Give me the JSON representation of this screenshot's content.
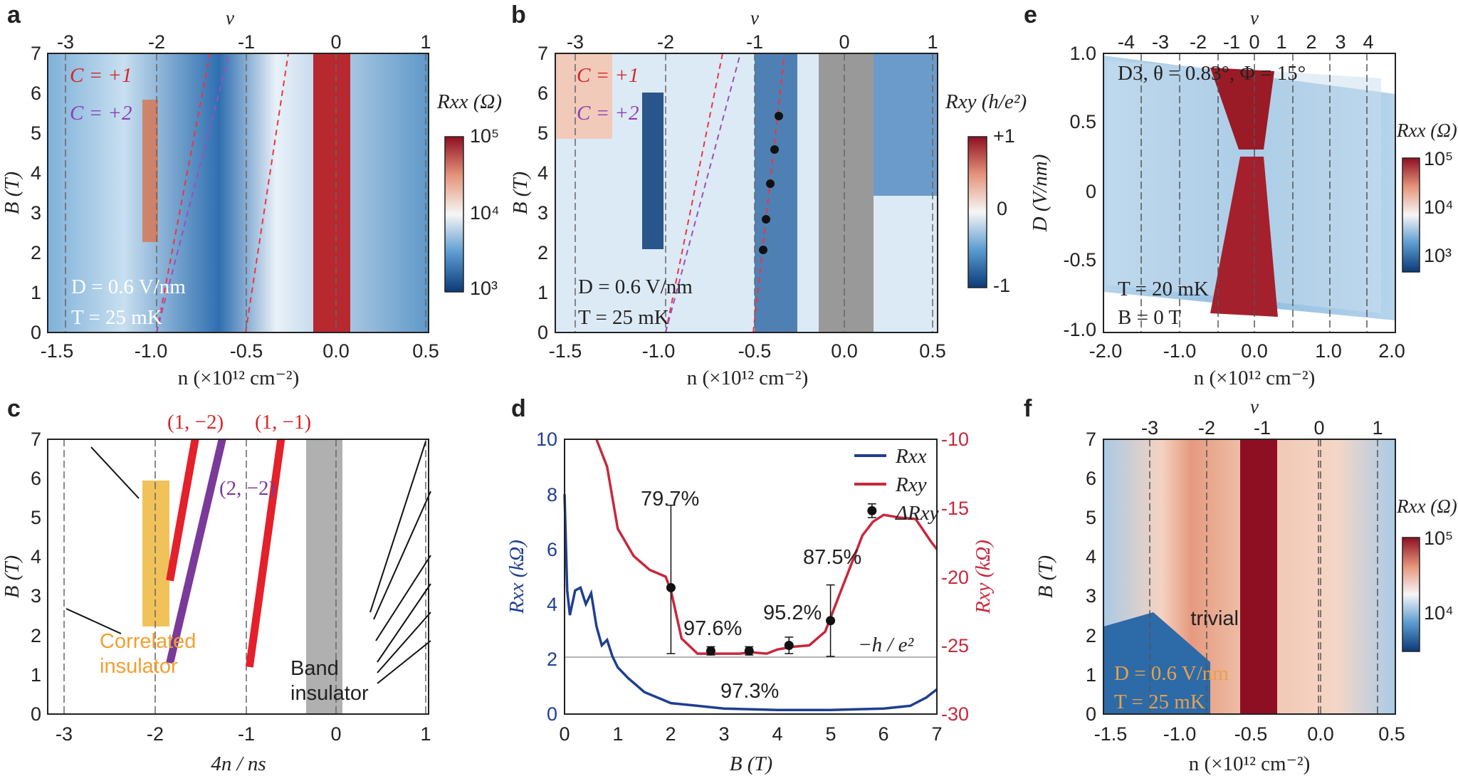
{
  "panels": {
    "a": {
      "label": "a",
      "top_axis_label": "ν",
      "top_ticks": [
        "-3",
        "-2",
        "-1",
        "0",
        "1"
      ],
      "x_label": "n (×10¹² cm⁻²)",
      "x_ticks": [
        "-1.5",
        "-1.0",
        "-0.5",
        "0.0",
        "0.5"
      ],
      "y_label": "B (T)",
      "y_ticks": [
        "0",
        "1",
        "2",
        "3",
        "4",
        "5",
        "6",
        "7"
      ],
      "legend": [
        "C = +1",
        "C = +2"
      ],
      "conditions": [
        "D = 0.6 V/nm",
        "T = 25 mK"
      ],
      "colorbar_label": "Rxx (Ω)",
      "colorbar_ticks": [
        "10⁵",
        "10⁴",
        "10³"
      ]
    },
    "b": {
      "label": "b",
      "top_axis_label": "ν",
      "top_ticks": [
        "-3",
        "-2",
        "-1",
        "0",
        "1"
      ],
      "x_label": "n (×10¹² cm⁻²)",
      "x_ticks": [
        "-1.5",
        "-1.0",
        "-0.5",
        "0.0",
        "0.5"
      ],
      "y_label": "B (T)",
      "y_ticks": [
        "0",
        "1",
        "2",
        "3",
        "4",
        "5",
        "6",
        "7"
      ],
      "legend": [
        "C = +1",
        "C = +2"
      ],
      "conditions": [
        "D = 0.6 V/nm",
        "T = 25 mK"
      ],
      "colorbar_label": "Rxy (h/e²)",
      "colorbar_ticks": [
        "+1",
        "0",
        "-1"
      ]
    },
    "c": {
      "label": "c",
      "x_label": "4n / ns",
      "x_ticks": [
        "-3",
        "-2",
        "-1",
        "0",
        "1"
      ],
      "y_label": "B (T)",
      "y_ticks": [
        "0",
        "1",
        "2",
        "3",
        "4",
        "5",
        "6",
        "7"
      ],
      "labels": [
        "(1, −2)",
        "(1, −1)",
        "(2, −2)"
      ],
      "annotations": [
        "Correlated",
        "insulator",
        "Band",
        "insulator"
      ]
    },
    "d": {
      "label": "d",
      "x_label": "B (T)",
      "x_ticks": [
        "0",
        "1",
        "2",
        "3",
        "4",
        "5",
        "6",
        "7"
      ],
      "y_left_label": "Rxx (kΩ)",
      "y_left_ticks": [
        "0",
        "2",
        "4",
        "6",
        "8",
        "10"
      ],
      "y_right_label": "Rxy (kΩ)",
      "y_right_ticks": [
        "-30",
        "-25",
        "-20",
        "-15",
        "-10"
      ],
      "legend": [
        "Rxx",
        "Rxy",
        "ΔRxy"
      ],
      "percent_labels": [
        "79.7%",
        "97.6%",
        "97.3%",
        "95.2%",
        "87.5%"
      ],
      "quantum_label": "−h / e²"
    },
    "e": {
      "label": "e",
      "top_axis_label": "ν",
      "top_ticks": [
        "-4",
        "-3",
        "-2",
        "-1",
        "0",
        "1",
        "2",
        "3",
        "4"
      ],
      "x_label": "n (×10¹² cm⁻²)",
      "x_ticks": [
        "-2.0",
        "-1.0",
        "0.0",
        "1.0",
        "2.0"
      ],
      "y_label": "D (V/nm)",
      "y_ticks": [
        "-1.0",
        "-0.5",
        "0",
        "0.5",
        "1.0"
      ],
      "header": "D3, θ = 0.83°, Φ = 15°",
      "conditions": [
        "T = 20 mK",
        "B = 0 T"
      ],
      "colorbar_label": "Rxx (Ω)",
      "colorbar_ticks": [
        "10⁵",
        "10⁴",
        "10³"
      ]
    },
    "f": {
      "label": "f",
      "top_axis_label": "ν",
      "top_ticks": [
        "-3",
        "-2",
        "-1",
        "0",
        "1"
      ],
      "x_label": "n (×10¹² cm⁻²)",
      "x_ticks": [
        "-1.5",
        "-1.0",
        "-0.5",
        "0.0",
        "0.5"
      ],
      "y_label": "B (T)",
      "y_ticks": [
        "0",
        "1",
        "2",
        "3",
        "4",
        "5",
        "6",
        "7"
      ],
      "annotation": "trivial",
      "conditions": [
        "D = 0.6 V/nm",
        "T = 25 mK"
      ],
      "colorbar_label": "Rxx (Ω)",
      "colorbar_ticks": [
        "10⁵",
        "10⁴"
      ]
    }
  },
  "chart_data": [
    {
      "panel": "d",
      "type": "line",
      "x_unit": "T",
      "xlim": [
        0,
        7
      ],
      "ylim_left": [
        0,
        10
      ],
      "ylim_right": [
        -30,
        -10
      ],
      "series": [
        {
          "name": "Rxx",
          "axis": "left",
          "color": "#1f3f8f",
          "x": [
            0,
            0.05,
            0.1,
            0.2,
            0.3,
            0.4,
            0.5,
            0.6,
            0.7,
            0.8,
            0.9,
            1.0,
            1.2,
            1.5,
            2.0,
            2.5,
            3.0,
            4.0,
            5.0,
            6.0,
            6.5,
            6.8,
            7.0
          ],
          "y": [
            8.0,
            4.5,
            3.6,
            4.5,
            4.6,
            4.0,
            4.4,
            3.2,
            2.5,
            2.7,
            2.1,
            1.7,
            1.3,
            0.8,
            0.4,
            0.3,
            0.2,
            0.15,
            0.15,
            0.2,
            0.3,
            0.6,
            0.9
          ]
        },
        {
          "name": "Rxy",
          "axis": "right",
          "color": "#c8283c",
          "x": [
            0.6,
            0.8,
            1.0,
            1.3,
            1.6,
            1.9,
            2.0,
            2.2,
            2.5,
            2.8,
            3.0,
            3.3,
            3.5,
            3.8,
            4.0,
            4.3,
            4.6,
            4.9,
            5.0,
            5.2,
            5.4,
            5.6,
            5.8,
            6.0,
            6.3,
            6.6,
            6.9,
            7.0
          ],
          "y": [
            -10.0,
            -12.0,
            -16.5,
            -18.5,
            -19.5,
            -20.0,
            -21.0,
            -24.5,
            -25.6,
            -25.6,
            -25.6,
            -25.6,
            -25.5,
            -25.6,
            -25.3,
            -25.1,
            -25.0,
            -24.0,
            -23.0,
            -21.0,
            -19.0,
            -17.0,
            -16.0,
            -15.5,
            -15.7,
            -15.8,
            -17.5,
            -18.0
          ]
        }
      ],
      "delta_rxy_points": {
        "name": "ΔRxy",
        "x": [
          2.0,
          2.75,
          3.47,
          4.22,
          5.0,
          5.78
        ],
        "y": [
          -20.8,
          -25.4,
          -25.4,
          -25.0,
          -23.2,
          -15.2
        ],
        "err_low": [
          4.8,
          0.3,
          0.3,
          0.6,
          2.6,
          0.5
        ],
        "err_high": [
          6.0,
          0.3,
          0.3,
          0.6,
          2.6,
          0.5
        ]
      },
      "quantum_level_kOhm": -25.8
    },
    {
      "panel": "c",
      "type": "line",
      "x_unit": "4n/ns",
      "xlim": [
        -3,
        1
      ],
      "ylim": [
        0,
        7
      ],
      "series": [
        {
          "name": "(1, −2)",
          "color": "#e4202a",
          "x": [
            -1.83,
            -1.55
          ],
          "y": [
            3.4,
            7.0
          ]
        },
        {
          "name": "(1, −1)",
          "color": "#e4202a",
          "x": [
            -0.95,
            -0.6
          ],
          "y": [
            1.2,
            7.0
          ]
        },
        {
          "name": "(2, −2)",
          "color": "#7a3a9a",
          "x": [
            -1.83,
            -1.25
          ],
          "y": [
            1.3,
            7.0
          ]
        }
      ]
    }
  ]
}
